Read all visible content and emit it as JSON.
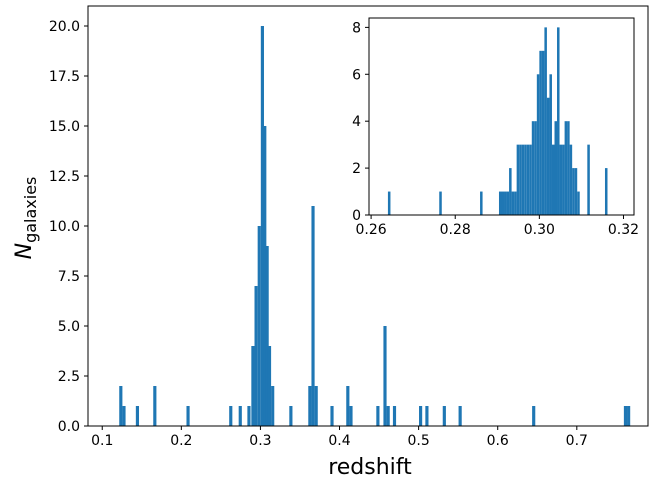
{
  "chart_data": [
    {
      "type": "bar",
      "role": "main",
      "xlabel": "redshift",
      "ylabel": {
        "main": "N",
        "subscript": "galaxies"
      },
      "xlim": [
        0.082,
        0.79
      ],
      "ylim": [
        0,
        21
      ],
      "xticks": [
        0.1,
        0.2,
        0.3,
        0.4,
        0.5,
        0.6,
        0.7
      ],
      "xtick_labels": [
        "0.1",
        "0.2",
        "0.3",
        "0.4",
        "0.5",
        "0.6",
        "0.7"
      ],
      "yticks": [
        0,
        2.5,
        5,
        7.5,
        10,
        12.5,
        15,
        17.5,
        20
      ],
      "ytick_labels": [
        "0.0",
        "2.5",
        "5.0",
        "7.5",
        "10.0",
        "12.5",
        "15.0",
        "17.5",
        "20.0"
      ],
      "bin_width": 0.004,
      "color": "#1f77b4",
      "grid": false,
      "bars": [
        {
          "x": 0.1235,
          "y": 2
        },
        {
          "x": 0.1275,
          "y": 1
        },
        {
          "x": 0.1445,
          "y": 1
        },
        {
          "x": 0.1665,
          "y": 2
        },
        {
          "x": 0.2085,
          "y": 1
        },
        {
          "x": 0.2625,
          "y": 1
        },
        {
          "x": 0.2745,
          "y": 1
        },
        {
          "x": 0.2855,
          "y": 1
        },
        {
          "x": 0.2905,
          "y": 4
        },
        {
          "x": 0.2945,
          "y": 7
        },
        {
          "x": 0.2985,
          "y": 10
        },
        {
          "x": 0.3025,
          "y": 20
        },
        {
          "x": 0.3055,
          "y": 15
        },
        {
          "x": 0.3085,
          "y": 9
        },
        {
          "x": 0.3115,
          "y": 4
        },
        {
          "x": 0.3155,
          "y": 2
        },
        {
          "x": 0.3385,
          "y": 1
        },
        {
          "x": 0.3625,
          "y": 2
        },
        {
          "x": 0.3665,
          "y": 11
        },
        {
          "x": 0.3705,
          "y": 2
        },
        {
          "x": 0.3905,
          "y": 1
        },
        {
          "x": 0.4105,
          "y": 2
        },
        {
          "x": 0.4145,
          "y": 1
        },
        {
          "x": 0.4485,
          "y": 1
        },
        {
          "x": 0.4575,
          "y": 5
        },
        {
          "x": 0.4615,
          "y": 1
        },
        {
          "x": 0.4695,
          "y": 1
        },
        {
          "x": 0.5025,
          "y": 1
        },
        {
          "x": 0.5105,
          "y": 1
        },
        {
          "x": 0.5325,
          "y": 1
        },
        {
          "x": 0.5525,
          "y": 1
        },
        {
          "x": 0.6455,
          "y": 1
        },
        {
          "x": 0.7615,
          "y": 1
        },
        {
          "x": 0.7655,
          "y": 1
        }
      ]
    },
    {
      "type": "bar",
      "role": "inset",
      "xlim": [
        0.2595,
        0.3225
      ],
      "ylim": [
        0,
        8.4
      ],
      "xticks": [
        0.26,
        0.28,
        0.3,
        0.32
      ],
      "xtick_labels": [
        "0.26",
        "0.28",
        "0.30",
        "0.32"
      ],
      "yticks": [
        0,
        2,
        4,
        6,
        8
      ],
      "ytick_labels": [
        "0",
        "2",
        "4",
        "6",
        "8"
      ],
      "bin_width": 0.0006,
      "color": "#1f77b4",
      "grid": false,
      "bars": [
        {
          "x": 0.2643,
          "y": 1
        },
        {
          "x": 0.2765,
          "y": 1
        },
        {
          "x": 0.2862,
          "y": 1
        },
        {
          "x": 0.2907,
          "y": 1
        },
        {
          "x": 0.2913,
          "y": 1
        },
        {
          "x": 0.2919,
          "y": 1
        },
        {
          "x": 0.2925,
          "y": 1
        },
        {
          "x": 0.2931,
          "y": 2
        },
        {
          "x": 0.2937,
          "y": 1
        },
        {
          "x": 0.2943,
          "y": 1
        },
        {
          "x": 0.2949,
          "y": 3
        },
        {
          "x": 0.2955,
          "y": 3
        },
        {
          "x": 0.2961,
          "y": 3
        },
        {
          "x": 0.2967,
          "y": 3
        },
        {
          "x": 0.2973,
          "y": 3
        },
        {
          "x": 0.2979,
          "y": 3
        },
        {
          "x": 0.2985,
          "y": 4
        },
        {
          "x": 0.2991,
          "y": 4
        },
        {
          "x": 0.2997,
          "y": 6
        },
        {
          "x": 0.3003,
          "y": 7
        },
        {
          "x": 0.3009,
          "y": 7
        },
        {
          "x": 0.3015,
          "y": 8
        },
        {
          "x": 0.3021,
          "y": 5
        },
        {
          "x": 0.3027,
          "y": 6
        },
        {
          "x": 0.3033,
          "y": 3
        },
        {
          "x": 0.3039,
          "y": 4
        },
        {
          "x": 0.3045,
          "y": 8
        },
        {
          "x": 0.3051,
          "y": 3
        },
        {
          "x": 0.3057,
          "y": 3
        },
        {
          "x": 0.3063,
          "y": 4
        },
        {
          "x": 0.3069,
          "y": 4
        },
        {
          "x": 0.3075,
          "y": 3
        },
        {
          "x": 0.3081,
          "y": 2
        },
        {
          "x": 0.3087,
          "y": 2
        },
        {
          "x": 0.3093,
          "y": 1
        },
        {
          "x": 0.3117,
          "y": 3
        },
        {
          "x": 0.3159,
          "y": 2
        }
      ]
    }
  ]
}
